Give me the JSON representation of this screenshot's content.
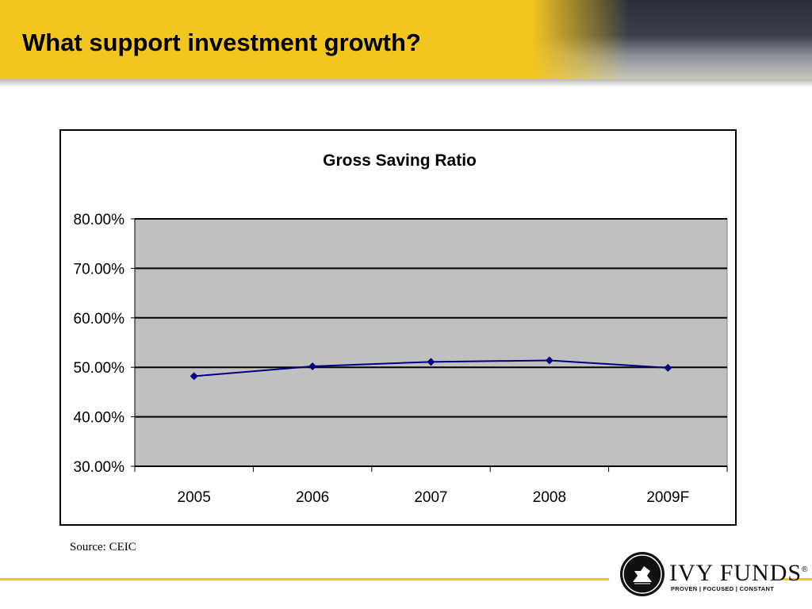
{
  "slide": {
    "title": "What support investment growth?",
    "source": "Source: CEIC"
  },
  "logo": {
    "name": "IVY FUNDS",
    "tagline": "PROVEN | FOCUSED | CONSTANT",
    "registered": "®"
  },
  "colors": {
    "header": "#f2c61f",
    "plot_area": "#c0c0c0",
    "series_line": "#000080"
  },
  "chart_data": {
    "type": "line",
    "title": "Gross Saving Ratio",
    "xlabel": "",
    "ylabel": "",
    "categories": [
      "2005",
      "2006",
      "2007",
      "2008",
      "2009F"
    ],
    "values": [
      48.2,
      50.2,
      51.1,
      51.4,
      49.9
    ],
    "ylim": [
      30,
      80
    ],
    "yticks": [
      30,
      40,
      50,
      60,
      70,
      80
    ],
    "ytick_labels": [
      "30.00%",
      "40.00%",
      "50.00%",
      "60.00%",
      "70.00%",
      "80.00%"
    ],
    "grid": true,
    "legend": false,
    "marker": "diamond"
  }
}
